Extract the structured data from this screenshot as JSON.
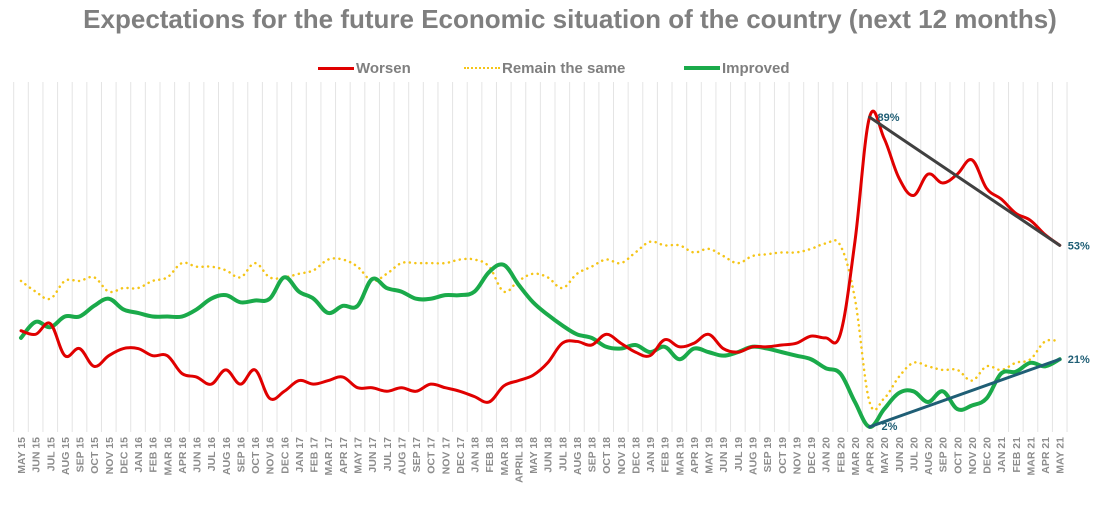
{
  "chart_data": {
    "type": "line",
    "title": "Expectations for the future Economic situation of the country (next 12 months)",
    "xlabel": "",
    "ylabel": "",
    "ylim": [
      0,
      100
    ],
    "y_unit": "%",
    "grid": "vertical gridlines between categories",
    "legend_position": "top-center",
    "categories": [
      "MAY 15",
      "JUN 15",
      "JUL 15",
      "AUG 15",
      "SEP 15",
      "OCT 15",
      "NOV 15",
      "DEC 15",
      "JAN 16",
      "FEB 16",
      "MAR 16",
      "APR 16",
      "JUN 16",
      "JUL 16",
      "AUG 16",
      "SEP 16",
      "OCT 16",
      "NOV 16",
      "DEC 16",
      "JAN 17",
      "FEB 17",
      "MAR 17",
      "APR 17",
      "MAY 17",
      "JUN 17",
      "JUL 17",
      "AUG 17",
      "SEP 17",
      "OCT 17",
      "NOV 17",
      "DEC 17",
      "JAN 18",
      "FEB 18",
      "MAR 18",
      "APRIL 18",
      "MAY 18",
      "JUN 18",
      "JUL 18",
      "AUG 18",
      "SEP 18",
      "OCT 18",
      "NOV 18",
      "DEC 18",
      "JAN 19",
      "FEB 19",
      "MAR 19",
      "APR 19",
      "MAY 19",
      "JUN 19",
      "JUL 19",
      "AUG 19",
      "SEP 19",
      "OCT 19",
      "NOV 19",
      "DEC 19",
      "JAN 20",
      "FEB 20",
      "MAR 20",
      "APR 20",
      "MAY 20",
      "JUN 20",
      "JUL 20",
      "AUG 20",
      "SEP 20",
      "OCT 20",
      "NOV 20",
      "DEC 20",
      "JAN 21",
      "FEB 21",
      "MAR 21",
      "APR 21",
      "MAY 21"
    ],
    "series": [
      {
        "name": "Worsen",
        "color": "#e00000",
        "style": "solid",
        "values": [
          29,
          28,
          31,
          22,
          24,
          19,
          22,
          24,
          24,
          22,
          22,
          17,
          16,
          14,
          18,
          14,
          18,
          10,
          12,
          15,
          14,
          15,
          16,
          13,
          13,
          12,
          13,
          12,
          14,
          13,
          12,
          10.5,
          9,
          13.5,
          15,
          16.5,
          20,
          25.5,
          26,
          25,
          28,
          25.5,
          23,
          22,
          26.5,
          24.5,
          25.5,
          28,
          24,
          23,
          24.5,
          24.5,
          25,
          25.5,
          27.5,
          27,
          28,
          54,
          89,
          83,
          72,
          67,
          73,
          70.5,
          73,
          77,
          69,
          66,
          62,
          60,
          56,
          53
        ]
      },
      {
        "name": "Remain the same",
        "color": "#f5c518",
        "style": "dotted",
        "values": [
          43,
          40,
          38,
          43,
          43,
          44,
          40,
          41,
          41,
          43,
          44,
          48,
          47,
          47,
          46,
          44,
          48,
          44,
          44,
          45,
          46,
          49,
          49,
          47,
          43,
          45,
          48,
          48,
          48,
          48,
          49,
          49,
          47,
          40,
          43,
          45,
          44,
          41,
          45,
          47,
          49,
          48,
          51,
          54,
          53,
          53,
          51,
          52,
          50,
          48,
          50,
          50.5,
          51,
          51,
          52,
          53.5,
          53,
          38,
          9,
          10,
          16,
          20,
          19,
          18,
          18,
          15,
          19,
          18,
          20,
          21,
          26,
          26
        ]
      },
      {
        "name": "Improved",
        "color": "#1aaa4a",
        "style": "solid-thick",
        "values": [
          27,
          31.5,
          30,
          33,
          33,
          36,
          38,
          35,
          34,
          33,
          33,
          33,
          35,
          38,
          39,
          37,
          37.5,
          38,
          44,
          40,
          38,
          34,
          36,
          36,
          43.5,
          41,
          40,
          38,
          38,
          39,
          39,
          40,
          45.5,
          47.5,
          42,
          37,
          33.5,
          30.5,
          28,
          27,
          24.5,
          24,
          25,
          23,
          24.5,
          21,
          24,
          23,
          22,
          23,
          24.5,
          24,
          23,
          22,
          21,
          18.5,
          17,
          9,
          2,
          7,
          11.5,
          12,
          9,
          12,
          7,
          8,
          10,
          17,
          17.5,
          20,
          19,
          21
        ]
      }
    ],
    "annotations": [
      {
        "label": "89%",
        "series": "Worsen",
        "category": "APR 20",
        "value": 89
      },
      {
        "label": "53%",
        "series": "Worsen",
        "category": "MAY 21",
        "value": 53
      },
      {
        "label": "2%",
        "series": "Improved",
        "category": "APR 20",
        "value": 2
      },
      {
        "label": "21%",
        "series": "Improved",
        "category": "MAY 21",
        "value": 21
      }
    ],
    "trend_lines": [
      {
        "name": "Worsen trend",
        "color": "#404040",
        "from": {
          "category": "APR 20",
          "value": 89
        },
        "to": {
          "category": "MAY 21",
          "value": 53
        }
      },
      {
        "name": "Improved trend",
        "color": "#1f5e75",
        "from": {
          "category": "APR 20",
          "value": 2
        },
        "to": {
          "category": "MAY 21",
          "value": 21
        }
      }
    ]
  }
}
